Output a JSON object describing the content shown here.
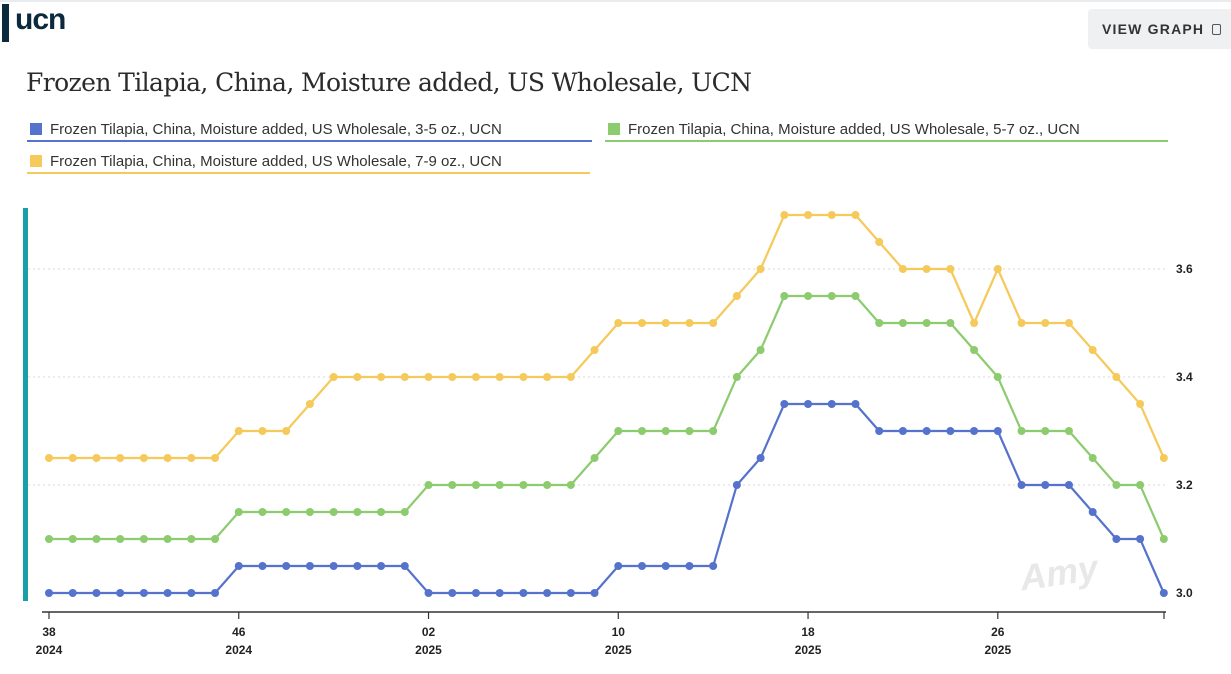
{
  "header": {
    "logo_text": "ucn",
    "view_graph_label": "VIEW GRAPH"
  },
  "watermark_text": "Amy",
  "colors": {
    "series_blue": "#5572cc",
    "series_green": "#8ccb6e",
    "series_yellow": "#f5c95a",
    "accent_teal": "#1a9ea8",
    "logo_navy": "#0b2a3e"
  },
  "chart_data": {
    "type": "line",
    "title": "Frozen Tilapia, China, Moisture added, US Wholesale, UCN",
    "xlabel": "",
    "ylabel": "",
    "ylim": [
      2.97,
      3.73
    ],
    "y_ticks": [
      3.0,
      3.2,
      3.4,
      3.6
    ],
    "y_tick_labels": [
      "3.0",
      "3.2",
      "3.4",
      "3.6"
    ],
    "y_axis_side": "right",
    "grid": "horizontal dotted",
    "x_ticks": [
      {
        "index": 0,
        "week": "38",
        "year": "2024"
      },
      {
        "index": 8,
        "week": "46",
        "year": "2024"
      },
      {
        "index": 16,
        "week": "02",
        "year": "2025"
      },
      {
        "index": 24,
        "week": "10",
        "year": "2025"
      },
      {
        "index": 32,
        "week": "18",
        "year": "2025"
      },
      {
        "index": 40,
        "week": "26",
        "year": "2025"
      }
    ],
    "n_points": 48,
    "series": [
      {
        "name": "Frozen Tilapia, China, Moisture added, US Wholesale, 3-5 oz., UCN",
        "color": "#5572cc",
        "values": [
          3.0,
          3.0,
          3.0,
          3.0,
          3.0,
          3.0,
          3.0,
          3.0,
          3.05,
          3.05,
          3.05,
          3.05,
          3.05,
          3.05,
          3.05,
          3.05,
          3.0,
          3.0,
          3.0,
          3.0,
          3.0,
          3.0,
          3.0,
          3.0,
          3.05,
          3.05,
          3.05,
          3.05,
          3.05,
          3.2,
          3.25,
          3.35,
          3.35,
          3.35,
          3.35,
          3.3,
          3.3,
          3.3,
          3.3,
          3.3,
          3.3,
          3.2,
          3.2,
          3.2,
          3.15,
          3.1,
          3.1,
          3.0
        ]
      },
      {
        "name": "Frozen Tilapia, China, Moisture added, US Wholesale, 5-7 oz., UCN",
        "color": "#8ccb6e",
        "values": [
          3.1,
          3.1,
          3.1,
          3.1,
          3.1,
          3.1,
          3.1,
          3.1,
          3.15,
          3.15,
          3.15,
          3.15,
          3.15,
          3.15,
          3.15,
          3.15,
          3.2,
          3.2,
          3.2,
          3.2,
          3.2,
          3.2,
          3.2,
          3.25,
          3.3,
          3.3,
          3.3,
          3.3,
          3.3,
          3.4,
          3.45,
          3.55,
          3.55,
          3.55,
          3.55,
          3.5,
          3.5,
          3.5,
          3.5,
          3.45,
          3.4,
          3.3,
          3.3,
          3.3,
          3.25,
          3.2,
          3.2,
          3.1
        ]
      },
      {
        "name": "Frozen Tilapia, China, Moisture added, US Wholesale, 7-9 oz., UCN",
        "color": "#f5c95a",
        "values": [
          3.25,
          3.25,
          3.25,
          3.25,
          3.25,
          3.25,
          3.25,
          3.25,
          3.3,
          3.3,
          3.3,
          3.35,
          3.4,
          3.4,
          3.4,
          3.4,
          3.4,
          3.4,
          3.4,
          3.4,
          3.4,
          3.4,
          3.4,
          3.45,
          3.5,
          3.5,
          3.5,
          3.5,
          3.5,
          3.55,
          3.6,
          3.7,
          3.7,
          3.7,
          3.7,
          3.65,
          3.6,
          3.6,
          3.6,
          3.5,
          3.6,
          3.5,
          3.5,
          3.5,
          3.45,
          3.4,
          3.35,
          3.25
        ]
      }
    ]
  }
}
